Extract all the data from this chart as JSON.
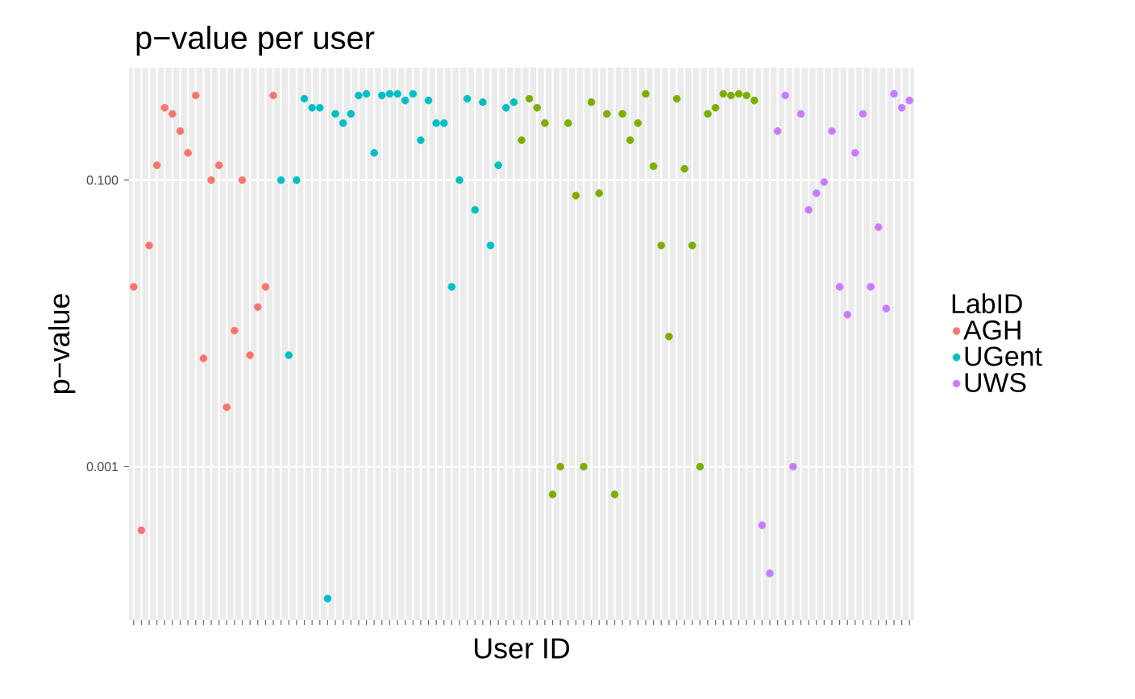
{
  "chart_data": {
    "type": "scatter",
    "title": "p−value per user",
    "xlabel": "User ID",
    "ylabel": "p−value",
    "legend_title": "LabID",
    "categories": [
      null,
      null,
      null,
      null,
      null,
      null,
      null,
      null,
      null,
      null,
      null,
      null,
      null,
      null,
      null,
      null,
      null,
      null,
      null,
      null,
      null,
      null,
      null,
      null,
      null,
      null,
      null,
      null,
      null,
      null,
      null,
      null,
      null,
      null,
      null,
      null,
      null,
      null,
      null,
      null,
      null,
      null,
      null,
      null,
      null,
      null,
      null,
      null,
      null,
      null,
      null,
      null,
      null,
      null,
      null,
      null,
      null,
      null,
      null,
      null,
      null,
      null,
      null,
      null,
      null,
      null,
      null,
      null,
      null,
      null,
      null,
      null,
      null,
      null,
      null,
      null,
      null,
      null,
      null,
      null,
      null,
      null,
      null,
      null,
      null,
      null,
      null,
      null,
      null,
      null,
      null,
      null,
      null,
      null,
      null,
      null,
      null,
      null,
      null,
      null,
      null
    ],
    "series": [
      {
        "name": "AGH",
        "color": "#f8766d",
        "values": [
          0.018,
          0.00036,
          0.035,
          0.127,
          0.32,
          0.29,
          0.22,
          0.155,
          0.39,
          0.0057,
          0.1,
          0.127,
          0.0026,
          0.0089,
          0.1,
          0.006,
          0.013,
          0.018,
          0.39,
          null,
          null,
          null,
          null,
          null,
          null,
          null,
          null,
          null,
          null,
          null,
          null,
          null,
          null,
          null,
          null,
          null,
          null,
          null,
          null,
          null,
          null,
          null,
          null,
          null,
          null,
          null,
          null,
          null,
          null,
          null,
          null,
          null,
          null,
          null,
          null,
          null,
          null,
          null,
          null,
          null,
          null,
          null,
          null,
          null,
          null,
          null,
          null,
          null,
          null,
          null,
          null,
          null,
          null,
          null,
          null,
          null,
          null,
          null,
          null,
          null,
          null,
          null,
          null,
          null,
          null,
          null,
          null,
          null,
          null,
          null,
          null,
          null,
          null,
          null,
          null,
          null,
          null,
          null,
          null,
          null,
          null
        ]
      },
      {
        "color": "#7cae00",
        "values": [
          null,
          null,
          null,
          null,
          null,
          null,
          null,
          null,
          null,
          null,
          null,
          null,
          null,
          null,
          null,
          null,
          null,
          null,
          null,
          null,
          null,
          null,
          null,
          null,
          null,
          null,
          null,
          null,
          null,
          null,
          null,
          null,
          null,
          null,
          null,
          null,
          null,
          null,
          null,
          null,
          null,
          null,
          null,
          null,
          null,
          null,
          null,
          null,
          null,
          null,
          0.19,
          0.37,
          0.32,
          0.25,
          0.00064,
          0.001,
          0.25,
          0.078,
          0.001,
          0.35,
          0.081,
          0.29,
          0.00064,
          0.29,
          0.19,
          0.25,
          0.4,
          0.125,
          0.035,
          0.0081,
          0.37,
          0.12,
          0.035,
          0.001,
          0.29,
          0.32,
          0.4,
          0.39,
          0.4,
          0.39,
          0.36,
          null,
          null,
          null,
          null,
          null,
          null,
          null,
          null,
          null,
          null,
          null,
          null,
          null,
          null,
          null,
          null,
          null,
          null,
          null,
          null
        ]
      },
      {
        "name": "UGent",
        "color": "#00bfc4",
        "values": [
          null,
          null,
          null,
          null,
          null,
          null,
          null,
          null,
          null,
          null,
          null,
          null,
          null,
          null,
          null,
          null,
          null,
          null,
          null,
          0.1,
          0.006,
          0.1,
          0.37,
          0.32,
          0.32,
          0.00012,
          0.29,
          0.25,
          0.29,
          0.39,
          0.4,
          0.155,
          0.39,
          0.4,
          0.4,
          0.36,
          0.4,
          0.19,
          0.36,
          0.25,
          0.25,
          0.018,
          0.1,
          0.37,
          0.062,
          0.35,
          0.035,
          0.127,
          0.32,
          0.35,
          null,
          null,
          null,
          null,
          null,
          null,
          null,
          null,
          null,
          null,
          null,
          null,
          null,
          null,
          null,
          null,
          null,
          null,
          null,
          null,
          null,
          null,
          null,
          null,
          null,
          null,
          null,
          null,
          null,
          null,
          null,
          null,
          null,
          null,
          null,
          null,
          null,
          null,
          null,
          null,
          null,
          null,
          null,
          null,
          null,
          null,
          null,
          null,
          null,
          null,
          null
        ]
      },
      {
        "name": "UWS",
        "color": "#c77cff",
        "values": [
          null,
          null,
          null,
          null,
          null,
          null,
          null,
          null,
          null,
          null,
          null,
          null,
          null,
          null,
          null,
          null,
          null,
          null,
          null,
          null,
          null,
          null,
          null,
          null,
          null,
          null,
          null,
          null,
          null,
          null,
          null,
          null,
          null,
          null,
          null,
          null,
          null,
          null,
          null,
          null,
          null,
          null,
          null,
          null,
          null,
          null,
          null,
          null,
          null,
          null,
          null,
          null,
          null,
          null,
          null,
          null,
          null,
          null,
          null,
          null,
          null,
          null,
          null,
          null,
          null,
          null,
          null,
          null,
          null,
          null,
          null,
          null,
          null,
          null,
          null,
          null,
          null,
          null,
          null,
          null,
          null,
          0.00039,
          0.00018,
          0.22,
          0.39,
          0.001,
          0.29,
          0.062,
          0.081,
          0.097,
          0.22,
          0.018,
          0.0115,
          0.155,
          0.29,
          0.018,
          0.047,
          0.0127,
          0.4,
          0.32,
          0.36
        ]
      }
    ],
    "log": "y",
    "ylim": [
      8.5e-05,
      0.61
    ],
    "yticks": [
      0.001,
      {
        "value": 0.1,
        "label": "0.100"
      }
    ],
    "grid": true,
    "legend": "right",
    "tick_labels": "y"
  }
}
